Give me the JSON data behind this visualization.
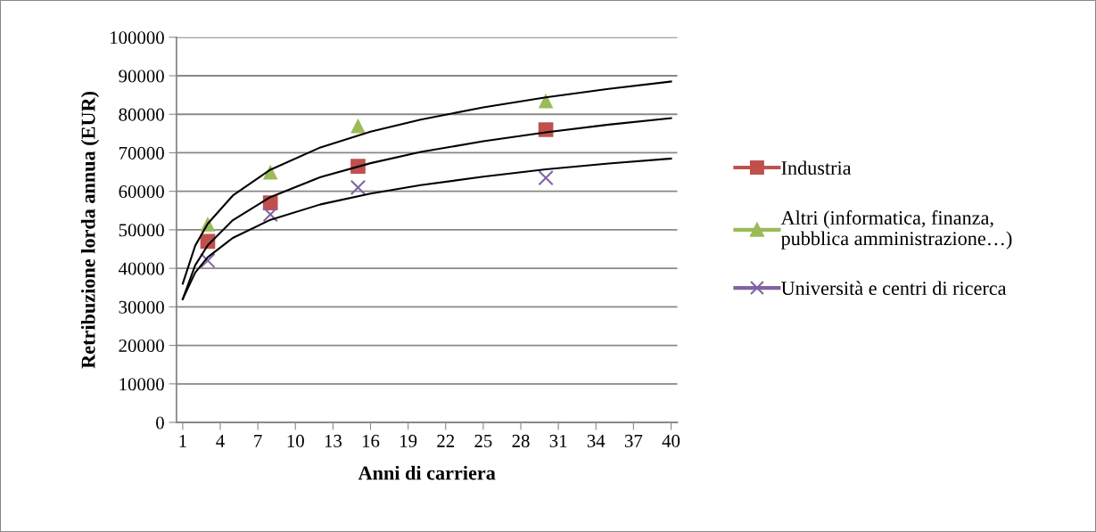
{
  "chart_data": {
    "type": "scatter",
    "xlabel": "Anni di carriera",
    "ylabel": "Retribuzione lorda annua (EUR)",
    "xlim": [
      0.5,
      40.5
    ],
    "xticks": [
      1,
      4,
      7,
      10,
      13,
      16,
      19,
      22,
      25,
      28,
      31,
      34,
      37,
      40
    ],
    "ylim": [
      0,
      100000
    ],
    "yticks": [
      0,
      10000,
      20000,
      30000,
      40000,
      50000,
      60000,
      70000,
      80000,
      90000,
      100000
    ],
    "grid": "y",
    "legend": "right",
    "series": [
      {
        "name": "Industria",
        "color": "#c0504d",
        "marker": "square",
        "x": [
          3,
          8,
          15,
          30
        ],
        "values": [
          47000,
          57000,
          66500,
          76000
        ]
      },
      {
        "name": "Altri (informatica, finanza,\npubblica amministrazione…)",
        "color": "#9bbb59",
        "marker": "triangle",
        "x": [
          3,
          8,
          15,
          30
        ],
        "values": [
          51500,
          65000,
          77000,
          83500
        ]
      },
      {
        "name": "Università e centri di ricerca",
        "color": "#8064a2",
        "marker": "cross",
        "x": [
          3,
          8,
          15,
          30
        ],
        "values": [
          42000,
          54000,
          61000,
          63500
        ]
      },
      {
        "type": "line",
        "color": "#000000",
        "marker": "none",
        "line_style": "solid",
        "x": [
          1,
          2,
          3,
          5,
          8,
          12,
          16,
          20,
          25,
          30,
          35,
          40
        ],
        "values": [
          36000,
          45900,
          51600,
          58900,
          65600,
          71400,
          75500,
          78600,
          81800,
          84400,
          86600,
          88500
        ]
      },
      {
        "type": "line",
        "color": "#000000",
        "marker": "none",
        "line_style": "solid",
        "x": [
          1,
          2,
          3,
          5,
          8,
          12,
          16,
          20,
          25,
          30,
          35,
          40
        ],
        "values": [
          32000,
          40800,
          46000,
          52500,
          58500,
          63700,
          67300,
          70200,
          73000,
          75300,
          77300,
          79000
        ]
      },
      {
        "type": "line",
        "color": "#000000",
        "marker": "none",
        "line_style": "solid",
        "x": [
          1,
          2,
          3,
          5,
          8,
          12,
          16,
          20,
          25,
          30,
          35,
          40
        ],
        "values": [
          32000,
          38900,
          42900,
          47900,
          52600,
          56600,
          59400,
          61600,
          63800,
          65700,
          67200,
          68500
        ]
      }
    ]
  }
}
